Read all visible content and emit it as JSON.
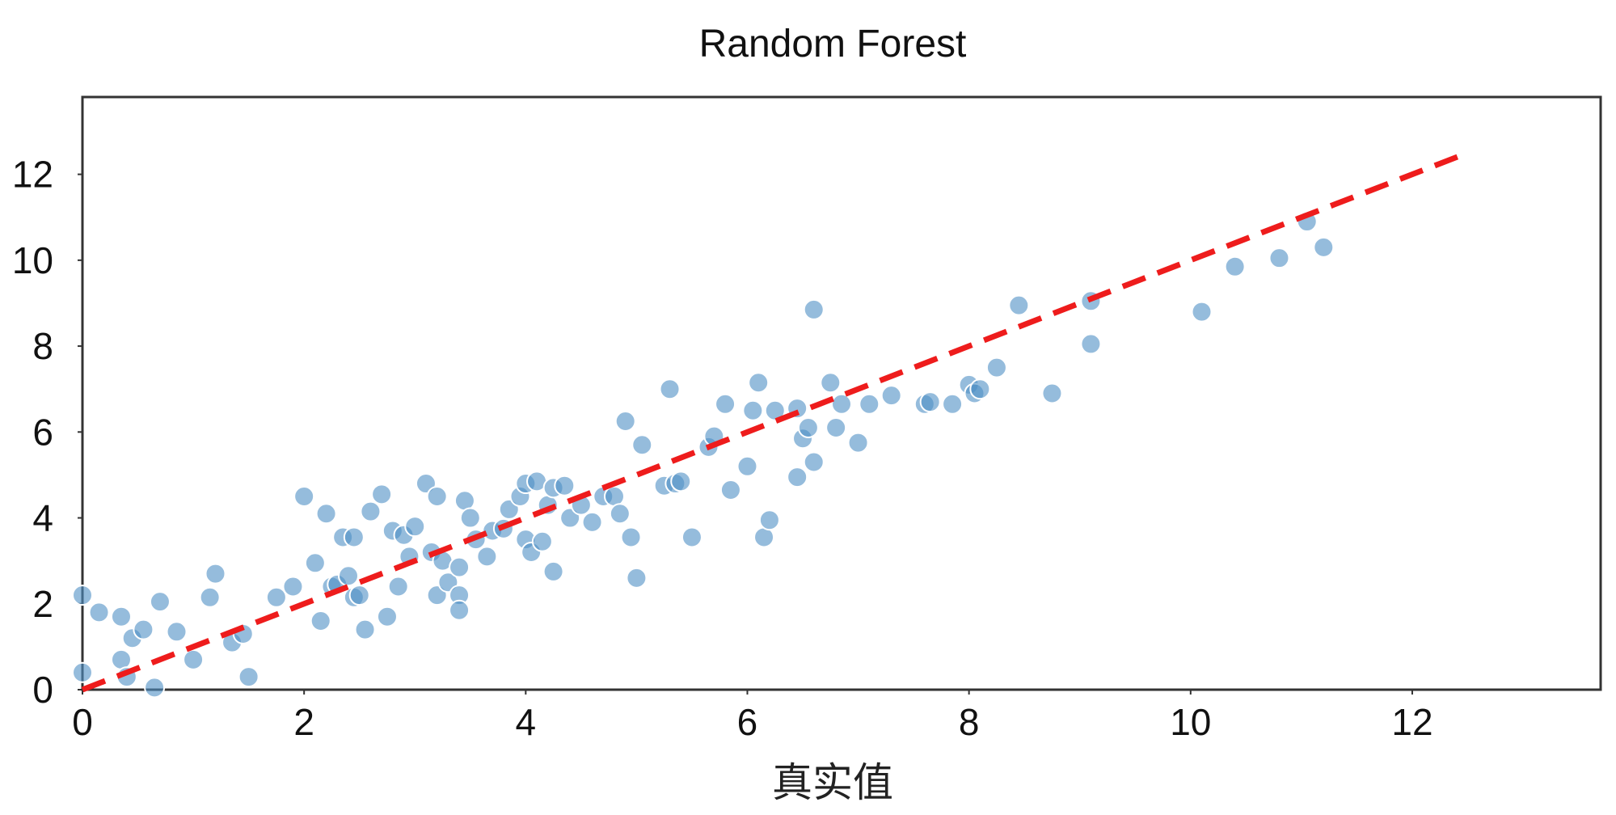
{
  "chart_data": {
    "type": "scatter",
    "title": "Random Forest",
    "xlabel": "真实值",
    "ylabel": "",
    "xlim": [
      0,
      13.7
    ],
    "ylim": [
      0,
      13.8
    ],
    "xticks": [
      0,
      2,
      4,
      6,
      8,
      10,
      12
    ],
    "yticks": [
      0,
      2,
      4,
      6,
      8,
      10,
      12
    ],
    "grid": false,
    "colors": {
      "points": "#4e8fc4",
      "reference_line": "#ee1c1c"
    },
    "reference_line": {
      "style": "dashed",
      "x": [
        0,
        12.5
      ],
      "y": [
        0,
        12.5
      ]
    },
    "series": [
      {
        "points": [
          [
            0.0,
            2.2
          ],
          [
            0.0,
            0.4
          ],
          [
            0.15,
            1.8
          ],
          [
            0.35,
            0.7
          ],
          [
            0.35,
            1.7
          ],
          [
            0.4,
            0.3
          ],
          [
            0.45,
            1.2
          ],
          [
            0.55,
            1.4
          ],
          [
            0.65,
            0.05
          ],
          [
            0.7,
            2.05
          ],
          [
            0.85,
            1.35
          ],
          [
            1.0,
            0.7
          ],
          [
            1.15,
            2.15
          ],
          [
            1.2,
            2.7
          ],
          [
            1.35,
            1.1
          ],
          [
            1.45,
            1.3
          ],
          [
            1.5,
            0.3
          ],
          [
            1.75,
            2.15
          ],
          [
            1.9,
            2.4
          ],
          [
            2.0,
            4.5
          ],
          [
            2.1,
            2.95
          ],
          [
            2.15,
            1.6
          ],
          [
            2.2,
            4.1
          ],
          [
            2.25,
            2.4
          ],
          [
            2.3,
            2.45
          ],
          [
            2.35,
            3.55
          ],
          [
            2.4,
            2.65
          ],
          [
            2.45,
            3.55
          ],
          [
            2.45,
            2.15
          ],
          [
            2.5,
            2.2
          ],
          [
            2.55,
            1.4
          ],
          [
            2.6,
            4.15
          ],
          [
            2.7,
            4.55
          ],
          [
            2.75,
            1.7
          ],
          [
            2.8,
            3.7
          ],
          [
            2.85,
            2.4
          ],
          [
            2.9,
            3.6
          ],
          [
            2.95,
            3.1
          ],
          [
            3.0,
            3.8
          ],
          [
            3.1,
            4.8
          ],
          [
            3.15,
            3.2
          ],
          [
            3.2,
            2.2
          ],
          [
            3.2,
            4.5
          ],
          [
            3.25,
            3.0
          ],
          [
            3.3,
            2.5
          ],
          [
            3.4,
            2.85
          ],
          [
            3.4,
            2.2
          ],
          [
            3.4,
            1.85
          ],
          [
            3.45,
            4.4
          ],
          [
            3.5,
            4.0
          ],
          [
            3.55,
            3.5
          ],
          [
            3.65,
            3.1
          ],
          [
            3.7,
            3.7
          ],
          [
            3.8,
            3.75
          ],
          [
            3.85,
            4.2
          ],
          [
            3.95,
            4.5
          ],
          [
            4.0,
            3.5
          ],
          [
            4.0,
            4.8
          ],
          [
            4.05,
            3.2
          ],
          [
            4.1,
            4.85
          ],
          [
            4.15,
            3.45
          ],
          [
            4.2,
            4.3
          ],
          [
            4.25,
            4.7
          ],
          [
            4.25,
            2.75
          ],
          [
            4.35,
            4.75
          ],
          [
            4.4,
            4.0
          ],
          [
            4.5,
            4.3
          ],
          [
            4.6,
            3.9
          ],
          [
            4.7,
            4.5
          ],
          [
            4.8,
            4.5
          ],
          [
            4.85,
            4.1
          ],
          [
            4.9,
            6.25
          ],
          [
            4.95,
            3.55
          ],
          [
            5.0,
            2.6
          ],
          [
            5.05,
            5.7
          ],
          [
            5.25,
            4.75
          ],
          [
            5.3,
            7.0
          ],
          [
            5.35,
            4.8
          ],
          [
            5.4,
            4.85
          ],
          [
            5.5,
            3.55
          ],
          [
            5.65,
            5.65
          ],
          [
            5.7,
            5.9
          ],
          [
            5.8,
            6.65
          ],
          [
            5.85,
            4.65
          ],
          [
            6.0,
            5.2
          ],
          [
            6.05,
            6.5
          ],
          [
            6.1,
            7.15
          ],
          [
            6.15,
            3.55
          ],
          [
            6.2,
            3.95
          ],
          [
            6.25,
            6.5
          ],
          [
            6.45,
            6.55
          ],
          [
            6.45,
            4.95
          ],
          [
            6.5,
            5.85
          ],
          [
            6.55,
            6.1
          ],
          [
            6.6,
            5.3
          ],
          [
            6.6,
            8.85
          ],
          [
            6.75,
            7.15
          ],
          [
            6.8,
            6.1
          ],
          [
            6.85,
            6.65
          ],
          [
            7.0,
            5.75
          ],
          [
            7.1,
            6.65
          ],
          [
            7.3,
            6.85
          ],
          [
            7.6,
            6.65
          ],
          [
            7.65,
            6.7
          ],
          [
            7.85,
            6.65
          ],
          [
            8.0,
            7.1
          ],
          [
            8.05,
            6.9
          ],
          [
            8.1,
            7.0
          ],
          [
            8.25,
            7.5
          ],
          [
            8.45,
            8.95
          ],
          [
            8.75,
            6.9
          ],
          [
            9.1,
            9.05
          ],
          [
            9.1,
            8.05
          ],
          [
            10.1,
            8.8
          ],
          [
            10.4,
            9.85
          ],
          [
            10.8,
            10.05
          ],
          [
            11.05,
            10.9
          ],
          [
            11.2,
            10.3
          ]
        ]
      }
    ]
  }
}
